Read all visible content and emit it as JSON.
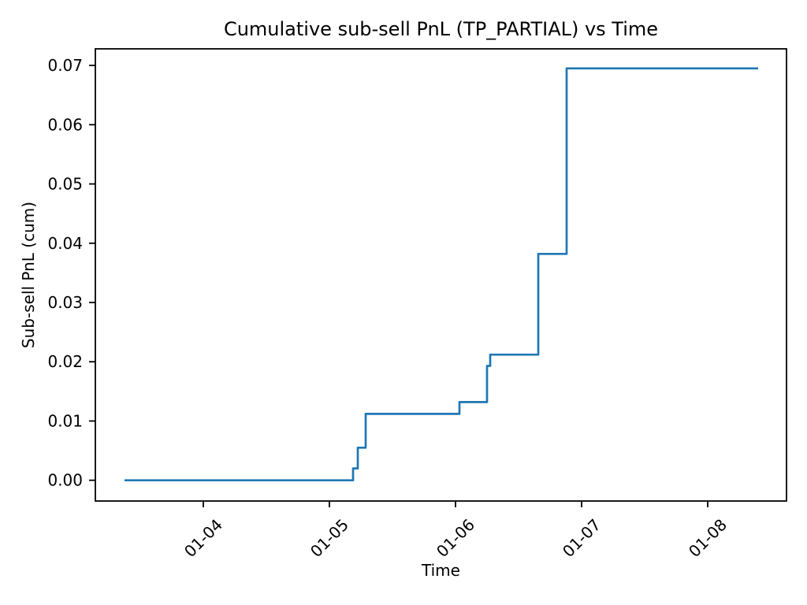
{
  "chart_data": {
    "type": "line",
    "title": "Cumulative sub-sell PnL (TP_PARTIAL) vs Time",
    "xlabel": "Time",
    "ylabel": "Sub-sell PnL (cum)",
    "grid": false,
    "legend": "none",
    "line": {
      "color": "#1f77b4",
      "width": 2.7,
      "step_mode": "post"
    },
    "axis_color": "#000000",
    "x_axis": {
      "lim": [
        3.144,
        8.625
      ],
      "unit": "month-day (01-XX)",
      "label_rotation_deg": 45,
      "ticks": [
        {
          "t": 4,
          "label": "01-04"
        },
        {
          "t": 5,
          "label": "01-05"
        },
        {
          "t": 6,
          "label": "01-06"
        },
        {
          "t": 7,
          "label": "01-07"
        },
        {
          "t": 8,
          "label": "01-08"
        }
      ]
    },
    "y_axis": {
      "lim": [
        -0.0035,
        0.0728
      ],
      "ticks": [
        {
          "v": 0.0,
          "label": "0.00"
        },
        {
          "v": 0.01,
          "label": "0.01"
        },
        {
          "v": 0.02,
          "label": "0.02"
        },
        {
          "v": 0.03,
          "label": "0.03"
        },
        {
          "v": 0.04,
          "label": "0.04"
        },
        {
          "v": 0.05,
          "label": "0.05"
        },
        {
          "v": 0.06,
          "label": "0.06"
        },
        {
          "v": 0.07,
          "label": "0.07"
        }
      ]
    },
    "series": [
      {
        "name": "cumulative-sub-sell-pnl",
        "points": [
          {
            "time": "01-03 09:00",
            "t": 3.375,
            "pnl": 0.0
          },
          {
            "time": "01-05 04:30",
            "t": 5.1875,
            "pnl": 0.002
          },
          {
            "time": "01-05 05:24",
            "t": 5.225,
            "pnl": 0.0055
          },
          {
            "time": "01-05 06:54",
            "t": 5.2875,
            "pnl": 0.0112
          },
          {
            "time": "01-06 00:45",
            "t": 6.0313,
            "pnl": 0.0132
          },
          {
            "time": "01-06 06:00",
            "t": 6.25,
            "pnl": 0.0193
          },
          {
            "time": "01-06 06:36",
            "t": 6.275,
            "pnl": 0.0212
          },
          {
            "time": "01-06 15:45",
            "t": 6.6563,
            "pnl": 0.0382
          },
          {
            "time": "01-06 21:09",
            "t": 6.8813,
            "pnl": 0.0695
          },
          {
            "time": "01-08 09:36",
            "t": 8.4,
            "pnl": 0.0695
          }
        ]
      }
    ]
  }
}
